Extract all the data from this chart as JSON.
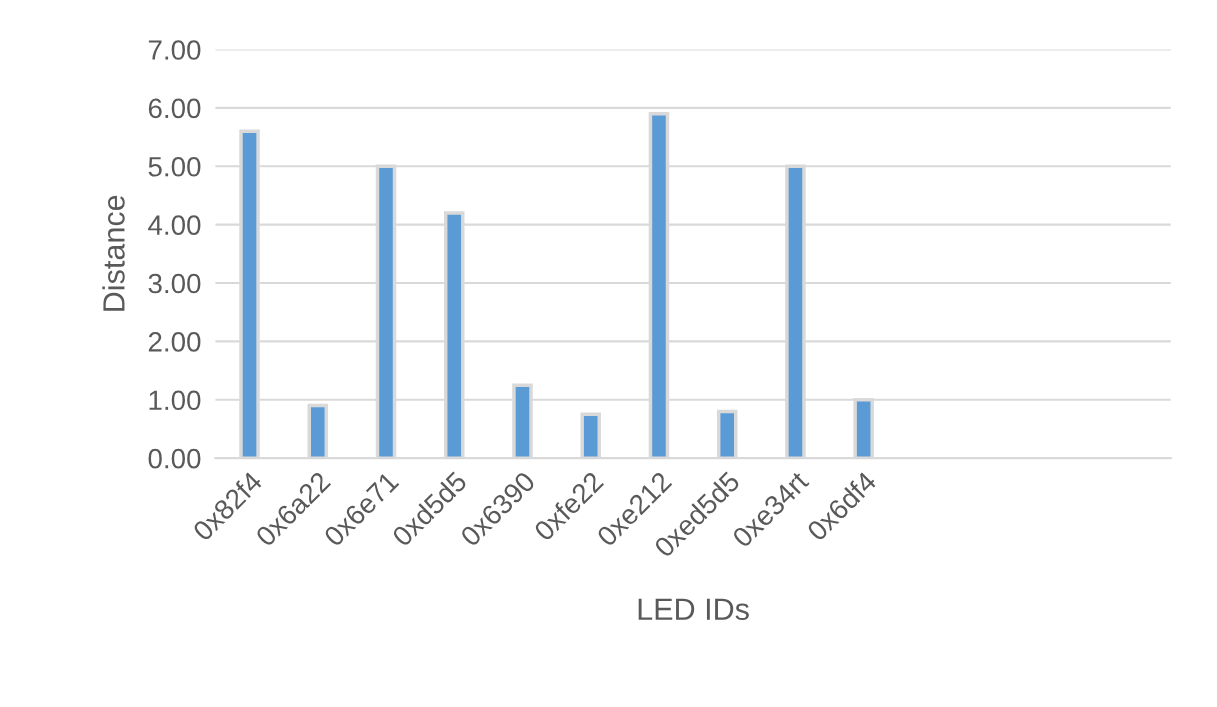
{
  "chart_data": {
    "type": "bar",
    "xlabel": "LED IDs",
    "ylabel": "Distance",
    "categories": [
      "0x82f4",
      "0x6a22",
      "0x6e71",
      "0xd5d5",
      "0x6390",
      "0xfe22",
      "0xe212",
      "0xed5d5",
      "0xe34rt",
      "0x6df4",
      null,
      null,
      null,
      null
    ],
    "values": [
      5.6,
      0.9,
      5.0,
      4.2,
      1.25,
      0.75,
      5.9,
      0.8,
      5.0,
      1.0,
      null,
      null,
      null,
      null
    ],
    "color": "#5b9bd5",
    "ylim": [
      0,
      7
    ],
    "yticks": [
      {
        "value": 0,
        "label": "0.00"
      },
      {
        "value": 1,
        "label": "1.00"
      },
      {
        "value": 2,
        "label": "2.00"
      },
      {
        "value": 3,
        "label": "3.00"
      },
      {
        "value": 4,
        "label": "4.00"
      },
      {
        "value": 5,
        "label": "5.00"
      },
      {
        "value": 6,
        "label": "6.00"
      },
      {
        "value": 7,
        "label": "7.00"
      }
    ],
    "grid": "y",
    "legend": false
  }
}
